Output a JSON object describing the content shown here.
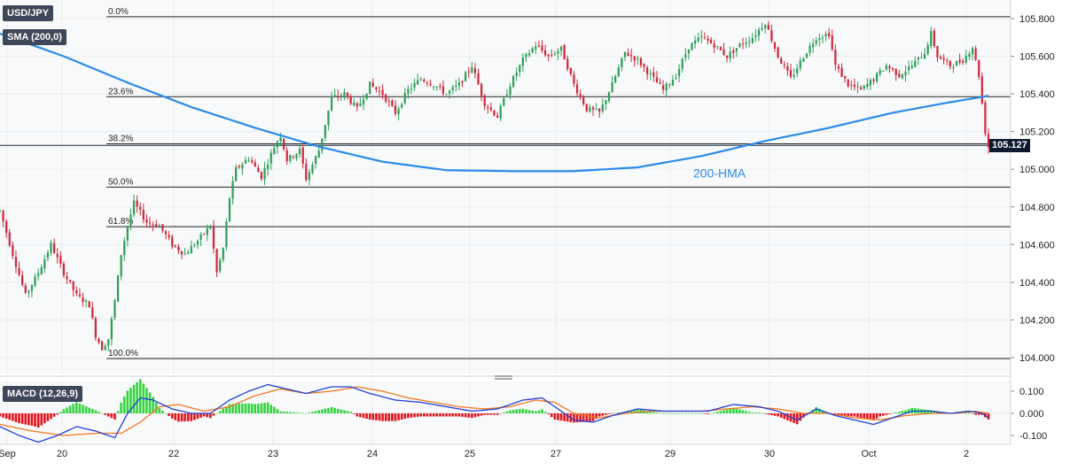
{
  "symbol": "USD/JPY",
  "indicator_label": "SMA (200,0)",
  "macd_label": "MACD (12,26,9)",
  "last_price_label": "105.127",
  "colors": {
    "up": "#2e9e58",
    "down": "#d0283a",
    "hma": "#2a8be8",
    "macd": "#1f3fd6",
    "signal": "#f07820",
    "hist_up": "#2fd63a",
    "hist_down": "#e8101a",
    "grid": "#e9ecef",
    "fib": "#222222"
  },
  "chart_data": [
    {
      "type": "candlestick",
      "title": "USD/JPY",
      "y_ticks": [
        "104.000",
        "104.200",
        "104.400",
        "104.600",
        "104.800",
        "105.000",
        "105.200",
        "105.400",
        "105.600",
        "105.800"
      ],
      "ylim": [
        103.93,
        105.86
      ],
      "x_ticks": [
        "Sep",
        "20",
        "22",
        "23",
        "24",
        "25",
        "27",
        "29",
        "30",
        "Oct",
        "2"
      ],
      "fib_levels": [
        {
          "label": "0.0%",
          "value": 105.81
        },
        {
          "label": "23.6%",
          "value": 105.385
        },
        {
          "label": "38.2%",
          "value": 105.135
        },
        {
          "label": "50.0%",
          "value": 104.905
        },
        {
          "label": "61.8%",
          "value": 104.695
        },
        {
          "label": "100.0%",
          "value": 103.995
        }
      ],
      "last_price": 105.127,
      "hma_label": "200-HMA",
      "hma_keypoints": [
        [
          0,
          105.72
        ],
        [
          20,
          105.6
        ],
        [
          40,
          105.46
        ],
        [
          60,
          105.33
        ],
        [
          80,
          105.22
        ],
        [
          100,
          105.12
        ],
        [
          120,
          105.04
        ],
        [
          140,
          104.995
        ],
        [
          160,
          104.99
        ],
        [
          180,
          104.99
        ],
        [
          200,
          105.01
        ],
        [
          220,
          105.07
        ],
        [
          240,
          105.15
        ],
        [
          260,
          105.22
        ],
        [
          280,
          105.3
        ],
        [
          296,
          105.35
        ],
        [
          310,
          105.39
        ]
      ],
      "candle_keypoints": [
        [
          0,
          104.78
        ],
        [
          4,
          104.55
        ],
        [
          8,
          104.33
        ],
        [
          12,
          104.45
        ],
        [
          16,
          104.6
        ],
        [
          20,
          104.45
        ],
        [
          24,
          104.33
        ],
        [
          28,
          104.28
        ],
        [
          30,
          104.12
        ],
        [
          32,
          104.05
        ],
        [
          34,
          104.1
        ],
        [
          36,
          104.3
        ],
        [
          38,
          104.55
        ],
        [
          40,
          104.7
        ],
        [
          42,
          104.82
        ],
        [
          46,
          104.72
        ],
        [
          50,
          104.7
        ],
        [
          54,
          104.6
        ],
        [
          58,
          104.55
        ],
        [
          62,
          104.62
        ],
        [
          66,
          104.7
        ],
        [
          68,
          104.45
        ],
        [
          70,
          104.58
        ],
        [
          72,
          104.85
        ],
        [
          74,
          105.0
        ],
        [
          78,
          105.06
        ],
        [
          82,
          104.96
        ],
        [
          86,
          105.12
        ],
        [
          88,
          105.18
        ],
        [
          90,
          105.05
        ],
        [
          94,
          105.1
        ],
        [
          96,
          104.95
        ],
        [
          100,
          105.1
        ],
        [
          104,
          105.38
        ],
        [
          108,
          105.4
        ],
        [
          112,
          105.32
        ],
        [
          116,
          105.45
        ],
        [
          120,
          105.4
        ],
        [
          124,
          105.3
        ],
        [
          128,
          105.42
        ],
        [
          132,
          105.48
        ],
        [
          136,
          105.45
        ],
        [
          140,
          105.4
        ],
        [
          144,
          105.45
        ],
        [
          148,
          105.55
        ],
        [
          152,
          105.35
        ],
        [
          156,
          105.28
        ],
        [
          160,
          105.45
        ],
        [
          164,
          105.58
        ],
        [
          168,
          105.66
        ],
        [
          172,
          105.6
        ],
        [
          176,
          105.64
        ],
        [
          180,
          105.45
        ],
        [
          184,
          105.32
        ],
        [
          188,
          105.3
        ],
        [
          192,
          105.45
        ],
        [
          196,
          105.62
        ],
        [
          200,
          105.58
        ],
        [
          204,
          105.5
        ],
        [
          208,
          105.42
        ],
        [
          212,
          105.5
        ],
        [
          216,
          105.65
        ],
        [
          220,
          105.7
        ],
        [
          224,
          105.66
        ],
        [
          228,
          105.6
        ],
        [
          232,
          105.66
        ],
        [
          236,
          105.7
        ],
        [
          240,
          105.78
        ],
        [
          244,
          105.6
        ],
        [
          248,
          105.48
        ],
        [
          252,
          105.6
        ],
        [
          256,
          105.7
        ],
        [
          260,
          105.72
        ],
        [
          262,
          105.55
        ],
        [
          266,
          105.45
        ],
        [
          270,
          105.42
        ],
        [
          274,
          105.48
        ],
        [
          278,
          105.55
        ],
        [
          282,
          105.5
        ],
        [
          286,
          105.55
        ],
        [
          290,
          105.62
        ],
        [
          292,
          105.72
        ],
        [
          294,
          105.6
        ],
        [
          298,
          105.55
        ],
        [
          302,
          105.58
        ],
        [
          305,
          105.65
        ],
        [
          307,
          105.5
        ],
        [
          309,
          105.2
        ],
        [
          310,
          105.12
        ]
      ],
      "macd_panel": {
        "title": "MACD (12,26,9)",
        "y_ticks": [
          "0.100",
          "0.000",
          "-0.100"
        ],
        "ylim": [
          -0.135,
          0.145
        ],
        "macd_keypoints": [
          [
            0,
            -0.06
          ],
          [
            6,
            -0.1
          ],
          [
            12,
            -0.13
          ],
          [
            18,
            -0.1
          ],
          [
            24,
            -0.06
          ],
          [
            30,
            -0.08
          ],
          [
            36,
            -0.11
          ],
          [
            40,
            0.0
          ],
          [
            44,
            0.07
          ],
          [
            48,
            0.06
          ],
          [
            54,
            0.02
          ],
          [
            60,
            0.0
          ],
          [
            66,
            0.0
          ],
          [
            72,
            0.06
          ],
          [
            78,
            0.1
          ],
          [
            84,
            0.13
          ],
          [
            90,
            0.11
          ],
          [
            96,
            0.09
          ],
          [
            104,
            0.12
          ],
          [
            110,
            0.12
          ],
          [
            116,
            0.09
          ],
          [
            124,
            0.06
          ],
          [
            132,
            0.05
          ],
          [
            140,
            0.03
          ],
          [
            148,
            0.01
          ],
          [
            156,
            0.02
          ],
          [
            164,
            0.06
          ],
          [
            170,
            0.07
          ],
          [
            174,
            0.03
          ],
          [
            180,
            -0.03
          ],
          [
            186,
            -0.04
          ],
          [
            192,
            -0.01
          ],
          [
            200,
            0.02
          ],
          [
            208,
            0.01
          ],
          [
            216,
            0.01
          ],
          [
            222,
            0.01
          ],
          [
            230,
            0.04
          ],
          [
            238,
            0.03
          ],
          [
            244,
            0.01
          ],
          [
            250,
            -0.03
          ],
          [
            256,
            0.02
          ],
          [
            262,
            -0.01
          ],
          [
            268,
            -0.03
          ],
          [
            274,
            -0.05
          ],
          [
            280,
            -0.02
          ],
          [
            286,
            0.01
          ],
          [
            292,
            0.01
          ],
          [
            298,
            0.0
          ],
          [
            304,
            0.01
          ],
          [
            308,
            0.0
          ],
          [
            310,
            -0.02
          ]
        ],
        "signal_keypoints": [
          [
            0,
            -0.05
          ],
          [
            10,
            -0.08
          ],
          [
            20,
            -0.1
          ],
          [
            30,
            -0.09
          ],
          [
            38,
            -0.09
          ],
          [
            44,
            -0.04
          ],
          [
            50,
            0.03
          ],
          [
            56,
            0.04
          ],
          [
            64,
            0.01
          ],
          [
            72,
            0.03
          ],
          [
            80,
            0.08
          ],
          [
            88,
            0.11
          ],
          [
            96,
            0.09
          ],
          [
            104,
            0.1
          ],
          [
            112,
            0.12
          ],
          [
            120,
            0.1
          ],
          [
            128,
            0.07
          ],
          [
            136,
            0.05
          ],
          [
            144,
            0.03
          ],
          [
            152,
            0.02
          ],
          [
            160,
            0.03
          ],
          [
            168,
            0.06
          ],
          [
            174,
            0.05
          ],
          [
            180,
            0.0
          ],
          [
            188,
            -0.02
          ],
          [
            196,
            0.0
          ],
          [
            204,
            0.01
          ],
          [
            212,
            0.01
          ],
          [
            220,
            0.01
          ],
          [
            228,
            0.02
          ],
          [
            236,
            0.03
          ],
          [
            244,
            0.02
          ],
          [
            252,
            0.0
          ],
          [
            260,
            0.0
          ],
          [
            268,
            -0.02
          ],
          [
            276,
            -0.03
          ],
          [
            284,
            -0.01
          ],
          [
            292,
            0.0
          ],
          [
            300,
            0.0
          ],
          [
            306,
            0.01
          ],
          [
            310,
            0.0
          ]
        ]
      }
    }
  ]
}
